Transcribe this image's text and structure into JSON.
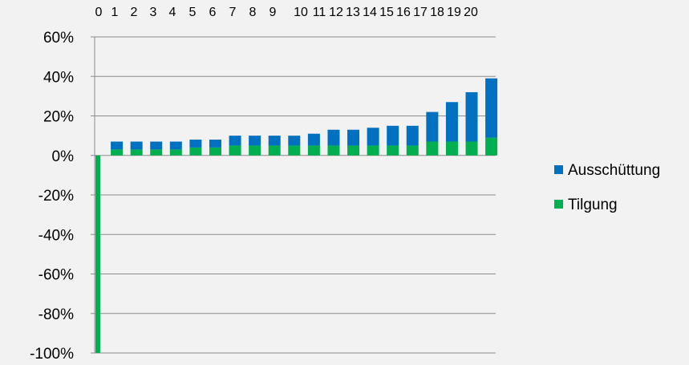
{
  "chart_data": {
    "type": "bar",
    "stacked": true,
    "categories": [
      "0",
      "1",
      "2",
      "3",
      "4",
      "5",
      "6",
      "7",
      "8",
      "9",
      "10",
      "11",
      "12",
      "13",
      "14",
      "15",
      "16",
      "17",
      "18",
      "19",
      "20"
    ],
    "x_tick_labels": [
      "0",
      "1",
      "2",
      "3",
      "4",
      "5",
      "6",
      "7",
      "8",
      "9",
      "10",
      "11",
      "12",
      "13",
      "14",
      "15",
      "16",
      "17",
      "18",
      "19",
      "20"
    ],
    "series": [
      {
        "name": "Tilgung",
        "color": "#00b050",
        "values": [
          -100,
          3,
          3,
          3,
          3,
          4,
          4,
          5,
          5,
          5,
          5,
          5,
          5,
          5,
          5,
          5,
          5,
          7,
          7,
          7,
          9
        ]
      },
      {
        "name": "Ausschüttung",
        "color": "#0070c0",
        "values": [
          0,
          4,
          4,
          4,
          4,
          4,
          4,
          5,
          5,
          5,
          5,
          6,
          8,
          8,
          9,
          10,
          10,
          15,
          20,
          25,
          30
        ]
      }
    ],
    "y_tick_labels": [
      "60%",
      "40%",
      "20%",
      "0%",
      "-20%",
      "-40%",
      "-60%",
      "-80%",
      "-100%"
    ],
    "ylim": [
      -100,
      60
    ],
    "y_unit": "%",
    "grid": true,
    "legend_position": "right",
    "legend_order": [
      "Ausschüttung",
      "Tilgung"
    ],
    "title": "",
    "xlabel": "",
    "ylabel": ""
  }
}
